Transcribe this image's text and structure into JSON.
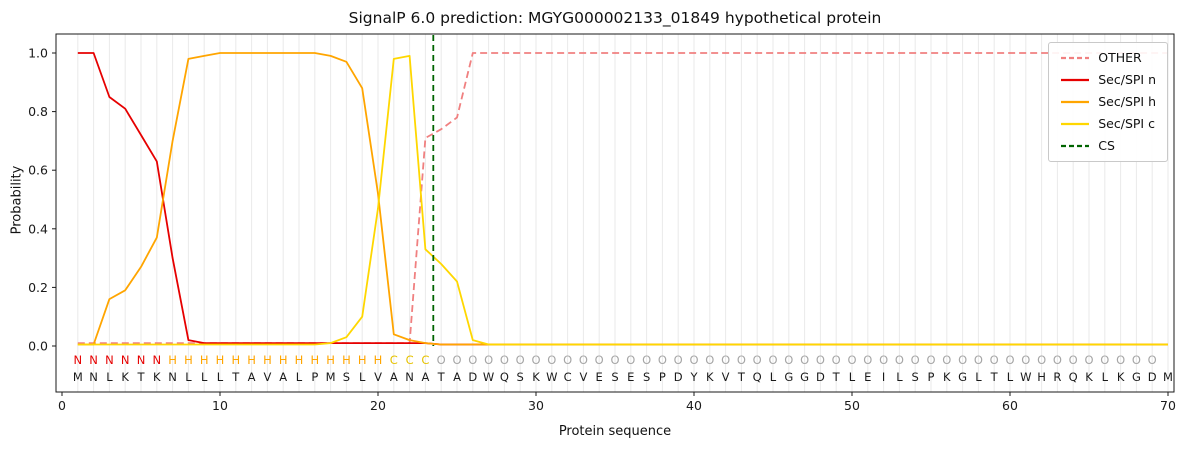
{
  "title": "SignalP 6.0 prediction: MGYG000002133_01849 hypothetical protein",
  "xlabel": "Protein sequence",
  "ylabel": "Probability",
  "legend": [
    {
      "label": "OTHER",
      "color": "#f08080",
      "dash": true
    },
    {
      "label": "Sec/SPI n",
      "color": "#e60000",
      "dash": false
    },
    {
      "label": "Sec/SPI h",
      "color": "#ffa500",
      "dash": false
    },
    {
      "label": "Sec/SPI c",
      "color": "#ffd700",
      "dash": false
    },
    {
      "label": "CS",
      "color": "#006400",
      "dash": true
    }
  ],
  "chart_data": {
    "type": "line",
    "x_range": [
      1,
      70
    ],
    "ylim": [
      0,
      1
    ],
    "grid": "vertical-per-residue",
    "legend_position": "upper right",
    "xticks": [
      0,
      10,
      20,
      30,
      40,
      50,
      60,
      70
    ],
    "yticks": [
      "0.0",
      "0.2",
      "0.4",
      "0.6",
      "0.8",
      "1.0"
    ],
    "cs_x": 23.5,
    "sequence": "MNLKTKNLLLTAVALPMSLVANATADWQSKWCVESESPDYKVTQLGGDTLEILSPKGLTLWHRQKLKGDM",
    "region_labels": "NNNNNNHHHHHHHHHHHHHHCCCOOOOOOOOOOOOOOOOOOOOOOOOOOOOOOOOOOOOOOOOOOOOOO",
    "region_colors": {
      "N": "#e60000",
      "H": "#ffa500",
      "C": "#e6c200",
      "O": "#a6a6a6"
    },
    "series": [
      {
        "name": "OTHER",
        "color": "#f08080",
        "dash": true,
        "values": [
          0.01,
          0.01,
          0.01,
          0.01,
          0.01,
          0.01,
          0.01,
          0.01,
          0.01,
          0.01,
          0.01,
          0.01,
          0.01,
          0.01,
          0.01,
          0.01,
          0.01,
          0.01,
          0.01,
          0.01,
          0.01,
          0.01,
          0.71,
          0.74,
          0.78,
          1.0,
          1.0,
          1.0,
          1.0,
          1.0,
          1.0,
          1.0,
          1.0,
          1.0,
          1.0,
          1.0,
          1.0,
          1.0,
          1.0,
          1.0,
          1.0,
          1.0,
          1.0,
          1.0,
          1.0,
          1.0,
          1.0,
          1.0,
          1.0,
          1.0,
          1.0,
          1.0,
          1.0,
          1.0,
          1.0,
          1.0,
          1.0,
          1.0,
          1.0,
          1.0,
          1.0,
          1.0,
          1.0,
          1.0,
          1.0,
          1.0,
          1.0,
          1.0,
          1.0,
          1.0
        ]
      },
      {
        "name": "Sec/SPI n",
        "color": "#e60000",
        "dash": false,
        "values": [
          1.0,
          1.0,
          0.85,
          0.81,
          0.72,
          0.63,
          0.3,
          0.02,
          0.01,
          0.01,
          0.01,
          0.01,
          0.01,
          0.01,
          0.01,
          0.01,
          0.01,
          0.01,
          0.01,
          0.01,
          0.01,
          0.01,
          0.01,
          0.005,
          0.005,
          0.005,
          0.005,
          0.005,
          0.005,
          0.005,
          0.005,
          0.005,
          0.005,
          0.005,
          0.005,
          0.005,
          0.005,
          0.005,
          0.005,
          0.005,
          0.005,
          0.005,
          0.005,
          0.005,
          0.005,
          0.005,
          0.005,
          0.005,
          0.005,
          0.005,
          0.005,
          0.005,
          0.005,
          0.005,
          0.005,
          0.005,
          0.005,
          0.005,
          0.005,
          0.005,
          0.005,
          0.005,
          0.005,
          0.005,
          0.005,
          0.005,
          0.005,
          0.005,
          0.005,
          0.005
        ]
      },
      {
        "name": "Sec/SPI h",
        "color": "#ffa500",
        "dash": false,
        "values": [
          0.005,
          0.005,
          0.16,
          0.19,
          0.27,
          0.37,
          0.7,
          0.98,
          0.99,
          1.0,
          1.0,
          1.0,
          1.0,
          1.0,
          1.0,
          1.0,
          0.99,
          0.97,
          0.88,
          0.52,
          0.04,
          0.02,
          0.01,
          0.005,
          0.005,
          0.005,
          0.005,
          0.005,
          0.005,
          0.005,
          0.005,
          0.005,
          0.005,
          0.005,
          0.005,
          0.005,
          0.005,
          0.005,
          0.005,
          0.005,
          0.005,
          0.005,
          0.005,
          0.005,
          0.005,
          0.005,
          0.005,
          0.005,
          0.005,
          0.005,
          0.005,
          0.005,
          0.005,
          0.005,
          0.005,
          0.005,
          0.005,
          0.005,
          0.005,
          0.005,
          0.005,
          0.005,
          0.005,
          0.005,
          0.005,
          0.005,
          0.005,
          0.005,
          0.005,
          0.005
        ]
      },
      {
        "name": "Sec/SPI c",
        "color": "#ffd700",
        "dash": false,
        "values": [
          0.005,
          0.005,
          0.005,
          0.005,
          0.005,
          0.005,
          0.005,
          0.005,
          0.005,
          0.005,
          0.005,
          0.005,
          0.005,
          0.005,
          0.005,
          0.005,
          0.01,
          0.03,
          0.1,
          0.47,
          0.98,
          0.99,
          0.33,
          0.28,
          0.22,
          0.02,
          0.005,
          0.005,
          0.005,
          0.005,
          0.005,
          0.005,
          0.005,
          0.005,
          0.005,
          0.005,
          0.005,
          0.005,
          0.005,
          0.005,
          0.005,
          0.005,
          0.005,
          0.005,
          0.005,
          0.005,
          0.005,
          0.005,
          0.005,
          0.005,
          0.005,
          0.005,
          0.005,
          0.005,
          0.005,
          0.005,
          0.005,
          0.005,
          0.005,
          0.005,
          0.005,
          0.005,
          0.005,
          0.005,
          0.005,
          0.005,
          0.005,
          0.005,
          0.005,
          0.005
        ]
      }
    ]
  }
}
